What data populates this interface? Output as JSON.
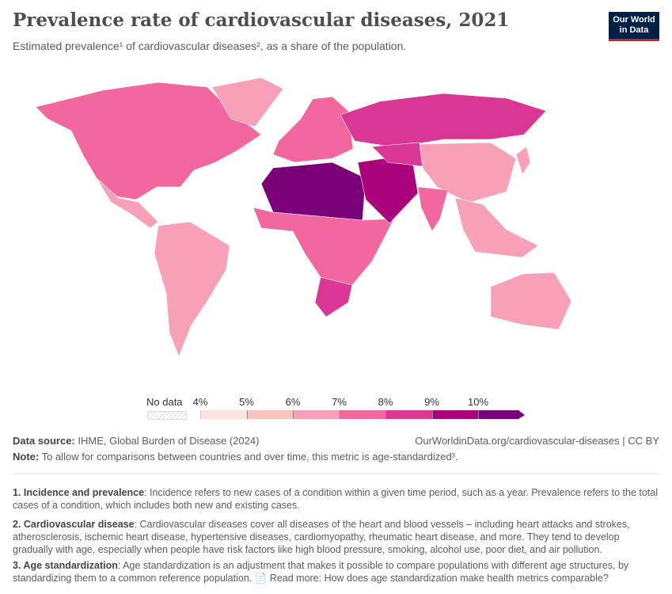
{
  "header": {
    "title": "Prevalence rate of cardiovascular diseases, 2021",
    "subtitle": "Estimated prevalence¹ of cardiovascular diseases², as a share of the population.",
    "logo": "Our World in Data"
  },
  "chart_data": {
    "type": "choropleth",
    "title": "Prevalence rate of cardiovascular diseases, 2021",
    "legend": {
      "no_data_label": "No data",
      "ticks": [
        "4%",
        "5%",
        "6%",
        "7%",
        "8%",
        "9%",
        "10%"
      ],
      "bins": [
        {
          "range": "4–5%",
          "color": "#fde3db"
        },
        {
          "range": "5–6%",
          "color": "#fbc3bb"
        },
        {
          "range": "6–7%",
          "color": "#f8a0b6"
        },
        {
          "range": "7–8%",
          "color": "#f2679e"
        },
        {
          "range": "8–9%",
          "color": "#d93695"
        },
        {
          "range": "9–10%",
          "color": "#ab037c"
        },
        {
          "range": ">10%",
          "color": "#7a0177"
        }
      ]
    },
    "regions": [
      {
        "name": "North America",
        "bin": "7–8%"
      },
      {
        "name": "Greenland",
        "bin": "6–7%"
      },
      {
        "name": "Central America",
        "bin": "6–7%"
      },
      {
        "name": "South America",
        "bin": "6–7%"
      },
      {
        "name": "Europe",
        "bin": "7–8%"
      },
      {
        "name": "Russia",
        "bin": "8–9%"
      },
      {
        "name": "North Africa",
        "bin": ">10%"
      },
      {
        "name": "Sub-Saharan Africa",
        "bin": "7–8%"
      },
      {
        "name": "Southern Africa",
        "bin": "8–9%"
      },
      {
        "name": "Middle East",
        "bin": "9–10%"
      },
      {
        "name": "Central Asia",
        "bin": "8–9%"
      },
      {
        "name": "China",
        "bin": "6–7%"
      },
      {
        "name": "India",
        "bin": "7–8%"
      },
      {
        "name": "Southeast Asia",
        "bin": "6–7%"
      },
      {
        "name": "Australia",
        "bin": "6–7%"
      },
      {
        "name": "Japan",
        "bin": "6–7%"
      }
    ]
  },
  "footer": {
    "source_label": "Data source:",
    "source": "IHME, Global Burden of Disease (2024)",
    "url": "OurWorldinData.org/cardiovascular-diseases | CC BY",
    "note_label": "Note:",
    "note": "To allow for comparisons between countries and over time, this metric is age-standardized³."
  },
  "footnotes": [
    {
      "label": "1. Incidence and prevalence",
      "text": ": Incidence refers to new cases of a condition within a given time period, such as a year. Prevalence refers to the total cases of a condition, which includes both new and existing cases."
    },
    {
      "label": "2. Cardiovascular disease",
      "text": ": Cardiovascular diseases cover all diseases of the heart and blood vessels – including heart attacks and strokes, atherosclerosis, ischemic heart disease, hypertensive diseases, cardiomyopathy, rheumatic heart disease, and more. They tend to develop gradually with age, especially when people have risk factors like high blood pressure, smoking, alcohol use, poor diet, and air pollution."
    },
    {
      "label": "3. Age standardization",
      "text": ": Age standardization is an adjustment that makes it possible to compare populations with different age structures, by standardizing them to a common reference population. ",
      "link": "Read more: How does age standardization make health metrics comparable?"
    }
  ]
}
